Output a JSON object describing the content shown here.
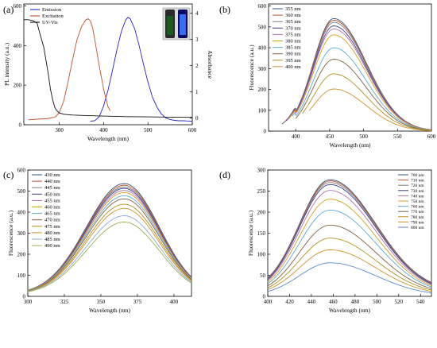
{
  "chart_data": [
    {
      "panel": "(a)",
      "type": "line",
      "xlabel": "Wavelength (nm)",
      "ylabel": "PL intensity (a.u.)",
      "y2label": "Absorbance",
      "xlim": [
        220,
        600
      ],
      "ylim": [
        0,
        610
      ],
      "y2lim": [
        -0.25,
        4.35
      ],
      "xticks": [
        300,
        400,
        500,
        600
      ],
      "yticks": [
        0,
        200,
        400,
        600
      ],
      "y2ticks": [
        0,
        1,
        2,
        3,
        4
      ],
      "legend_position": "top-left",
      "series": [
        {
          "name": "Emission",
          "color": "#2323c8",
          "axis": "left",
          "x": [
            370,
            380,
            390,
            400,
            410,
            420,
            430,
            440,
            450,
            455,
            460,
            470,
            480,
            490,
            500,
            510,
            520,
            530,
            540,
            550,
            560,
            570,
            580,
            590,
            600
          ],
          "y": [
            18,
            20,
            40,
            95,
            175,
            275,
            380,
            470,
            530,
            543,
            535,
            485,
            400,
            305,
            215,
            140,
            90,
            55,
            35,
            26,
            22,
            20,
            20,
            19,
            18
          ]
        },
        {
          "name": "Excitation",
          "color": "#c0502a",
          "axis": "left",
          "x": [
            230,
            250,
            270,
            290,
            300,
            310,
            320,
            330,
            340,
            350,
            360,
            365,
            370,
            375,
            380,
            390,
            400,
            410,
            415
          ],
          "y": [
            25,
            28,
            30,
            38,
            60,
            120,
            220,
            330,
            430,
            495,
            530,
            535,
            525,
            490,
            430,
            300,
            180,
            90,
            70
          ]
        },
        {
          "name": "UV-Vis",
          "color": "#111111",
          "axis": "right",
          "x": [
            220,
            230,
            240,
            250,
            255,
            260,
            265,
            270,
            275,
            280,
            285,
            290,
            295,
            300,
            310,
            330,
            360,
            400,
            450,
            500,
            550,
            600
          ],
          "y": [
            3.75,
            3.75,
            3.72,
            3.62,
            3.3,
            3.0,
            2.7,
            2.2,
            1.7,
            1.1,
            0.7,
            0.4,
            0.28,
            0.2,
            0.15,
            0.12,
            0.1,
            0.08,
            0.06,
            0.05,
            0.04,
            0.03
          ]
        }
      ]
    },
    {
      "panel": "(b)",
      "type": "line",
      "xlabel": "Wavelength (nm)",
      "ylabel": "Fluorescence (a.u.)",
      "xlim": [
        360,
        600
      ],
      "ylim": [
        0,
        610
      ],
      "xticks": [
        400,
        450,
        500,
        550,
        600
      ],
      "yticks": [
        0,
        100,
        200,
        300,
        400,
        500,
        600
      ],
      "legend_position": "top-left",
      "series": [
        {
          "name": "355 nm",
          "color": "#2e5a8c",
          "peak": 540,
          "xstart": 380
        },
        {
          "name": "360 nm",
          "color": "#c0502a",
          "peak": 532,
          "xstart": 382
        },
        {
          "name": "365 nm",
          "color": "#7a7a7a",
          "peak": 522,
          "xstart": 384
        },
        {
          "name": "370 nm",
          "color": "#3c3c8c",
          "peak": 505,
          "xstart": 386
        },
        {
          "name": "375 nm",
          "color": "#b070b0",
          "peak": 490,
          "xstart": 388
        },
        {
          "name": "380 nm",
          "color": "#d4a020",
          "peak": 462,
          "xstart": 390
        },
        {
          "name": "385 nm",
          "color": "#5aaad8",
          "peak": 400,
          "xstart": 395
        },
        {
          "name": "390 nm",
          "color": "#806040",
          "peak": 345,
          "xstart": 400
        },
        {
          "name": "395 nm",
          "color": "#b09020",
          "peak": 275,
          "xstart": 410
        },
        {
          "name": "400 nm",
          "color": "#d09030",
          "peak": 202,
          "xstart": 420
        }
      ]
    },
    {
      "panel": "(c)",
      "type": "line",
      "xlabel": "Wavelength (nm)",
      "ylabel": "Fluorescence (a.u.)",
      "xlim": [
        300,
        412
      ],
      "ylim": [
        0,
        600
      ],
      "xticks": [
        300,
        325,
        350,
        375,
        400
      ],
      "yticks": [
        0,
        100,
        200,
        300,
        400,
        500,
        600
      ],
      "legend_position": "top-left",
      "series": [
        {
          "name": "430 nm",
          "color": "#2e5a8c",
          "peak": 528
        },
        {
          "name": "440 nm",
          "color": "#c0502a",
          "peak": 520
        },
        {
          "name": "445 nm",
          "color": "#7a7a7a",
          "peak": 512
        },
        {
          "name": "450 nm",
          "color": "#3c3c8c",
          "peak": 505
        },
        {
          "name": "455 nm",
          "color": "#b070b0",
          "peak": 495
        },
        {
          "name": "460 nm",
          "color": "#d4a020",
          "peak": 485
        },
        {
          "name": "465 nm",
          "color": "#5aaad8",
          "peak": 470
        },
        {
          "name": "470 nm",
          "color": "#806040",
          "peak": 455
        },
        {
          "name": "475 nm",
          "color": "#b09020",
          "peak": 430
        },
        {
          "name": "480 nm",
          "color": "#d09030",
          "peak": 410
        },
        {
          "name": "485 nm",
          "color": "#8aa8d8",
          "peak": 375
        },
        {
          "name": "490 nm",
          "color": "#9ab050",
          "peak": 345
        }
      ]
    },
    {
      "panel": "(d)",
      "type": "line",
      "xlabel": "Wavelength (nm)",
      "ylabel": "Fluorescence (a.u.)",
      "xlim": [
        400,
        550
      ],
      "ylim": [
        0,
        300
      ],
      "xticks": [
        400,
        420,
        440,
        460,
        480,
        500,
        520,
        540
      ],
      "yticks": [
        0,
        50,
        100,
        150,
        200,
        250,
        300
      ],
      "legend_position": "top-right",
      "series": [
        {
          "name": "700 nm",
          "color": "#2e5a8c",
          "peak": 267
        },
        {
          "name": "710 nm",
          "color": "#c0502a",
          "peak": 265
        },
        {
          "name": "720 nm",
          "color": "#7a7a7a",
          "peak": 262
        },
        {
          "name": "730 nm",
          "color": "#3c3c8c",
          "peak": 258
        },
        {
          "name": "740 nm",
          "color": "#b070b0",
          "peak": 245
        },
        {
          "name": "750 nm",
          "color": "#d4a020",
          "peak": 225
        },
        {
          "name": "760 nm",
          "color": "#5aaad8",
          "peak": 200
        },
        {
          "name": "770 nm",
          "color": "#806040",
          "peak": 165
        },
        {
          "name": "780 nm",
          "color": "#b09020",
          "peak": 135
        },
        {
          "name": "790 nm",
          "color": "#d09030",
          "peak": 108
        },
        {
          "name": "800 nm",
          "color": "#5a8ac8",
          "peak": 78
        }
      ]
    }
  ]
}
